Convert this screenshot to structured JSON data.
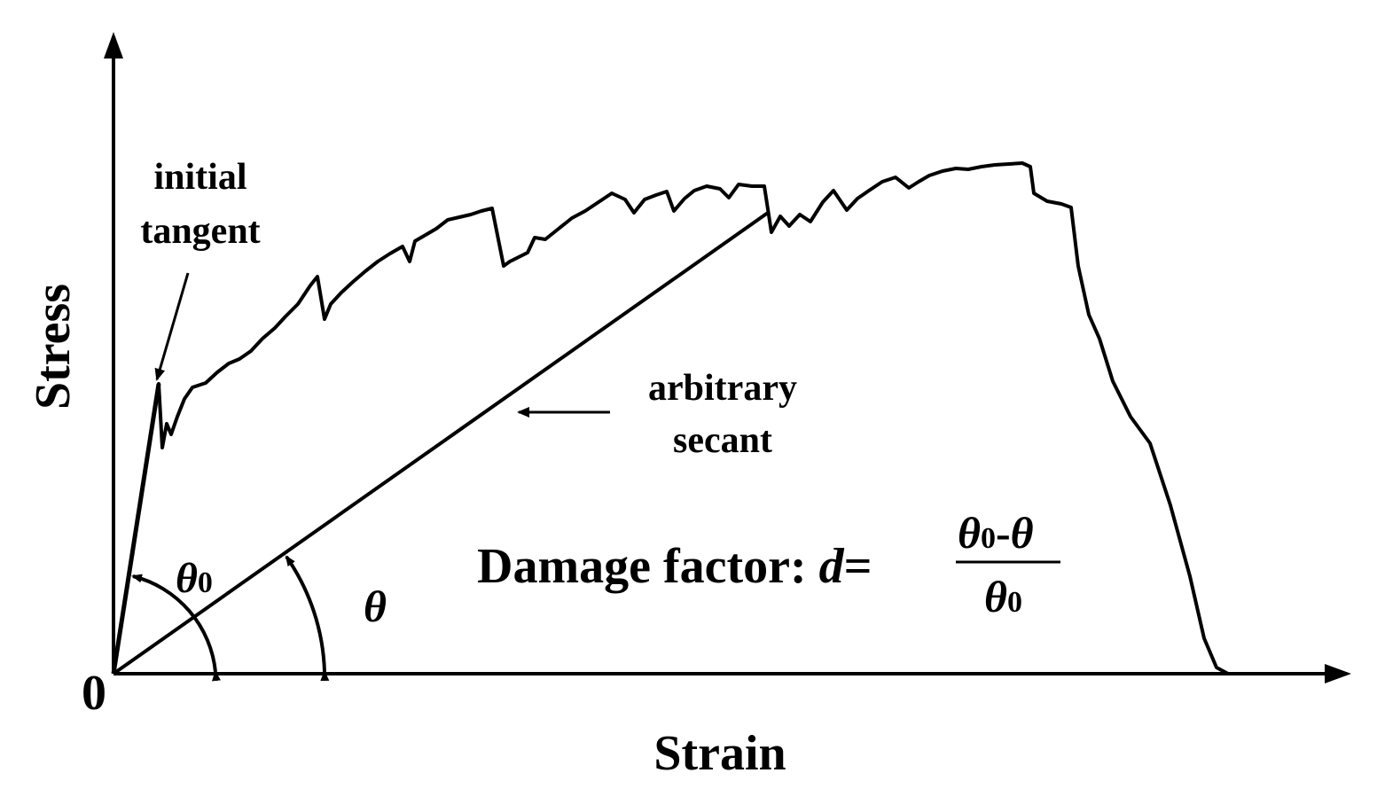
{
  "figure": {
    "origin_label": "0",
    "x_axis_title": "Strain",
    "y_axis_title": "Stress",
    "initial_tangent_line1": "initial",
    "initial_tangent_line2": "tangent",
    "arbitrary_secant_line1": "arbitrary",
    "arbitrary_secant_line2": "secant",
    "theta0_symbol": "θ",
    "theta0_subscript": "0",
    "theta_symbol": "θ",
    "formula_prefix": "Damage factor: ",
    "formula_var": "d",
    "formula_eq": "=",
    "formula_num_theta0": "θ",
    "formula_num_sub": "0",
    "formula_num_minus": "-",
    "formula_num_theta": "θ",
    "formula_den_theta0": "θ",
    "formula_den_sub": "0"
  },
  "colors": {
    "ink": "#000000",
    "background": "#ffffff"
  }
}
